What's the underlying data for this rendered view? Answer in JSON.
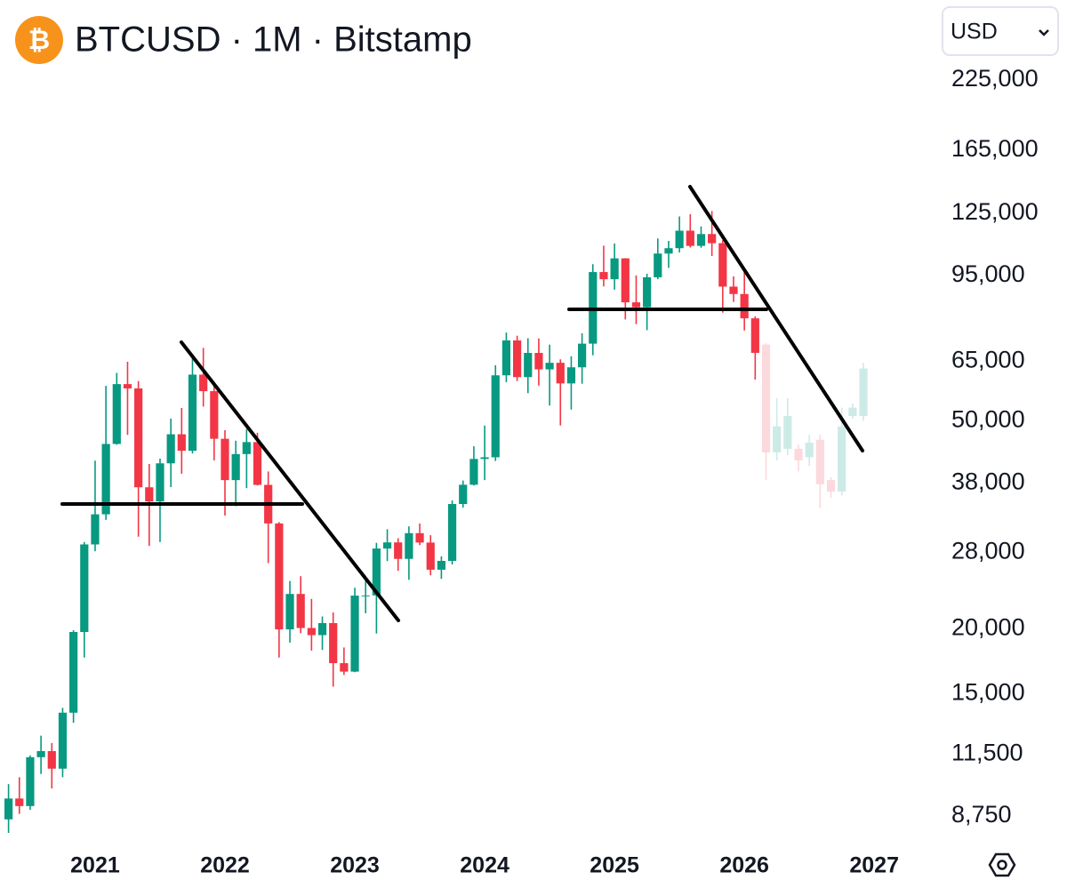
{
  "chart_data": {
    "type": "candlestick",
    "title": "BTCUSD · 1M · Bitstamp",
    "currency": "USD",
    "log_scale": true,
    "grid": false,
    "ylim": [
      7870,
      253000
    ],
    "yticks": [
      {
        "value": 225000,
        "label": "225,000"
      },
      {
        "value": 165000,
        "label": "165,000"
      },
      {
        "value": 125000,
        "label": "125,000"
      },
      {
        "value": 95000,
        "label": "95,000"
      },
      {
        "value": 65000,
        "label": "65,000"
      },
      {
        "value": 50000,
        "label": "50,000"
      },
      {
        "value": 38000,
        "label": "38,000"
      },
      {
        "value": 28000,
        "label": "28,000"
      },
      {
        "value": 20000,
        "label": "20,000"
      },
      {
        "value": 15000,
        "label": "15,000"
      },
      {
        "value": 11500,
        "label": "11,500"
      },
      {
        "value": 8750,
        "label": "8,750"
      }
    ],
    "categories": [
      null,
      null,
      null,
      null,
      null,
      null,
      null,
      null,
      "2021",
      null,
      null,
      null,
      null,
      null,
      null,
      null,
      null,
      null,
      null,
      null,
      "2022",
      null,
      null,
      null,
      null,
      null,
      null,
      null,
      null,
      null,
      null,
      null,
      "2023",
      null,
      null,
      null,
      null,
      null,
      null,
      null,
      null,
      null,
      null,
      null,
      "2024",
      null,
      null,
      null,
      null,
      null,
      null,
      null,
      null,
      null,
      null,
      null,
      "2025",
      null,
      null,
      null,
      null,
      null,
      null,
      null,
      null,
      null,
      null,
      null,
      "2026",
      null,
      null,
      null,
      null,
      null,
      null,
      null,
      null,
      null,
      null,
      null,
      "2027"
    ],
    "series": [
      {
        "up_color": "#089981",
        "down_color": "#f23645",
        "open": [
          8620,
          9450,
          9140,
          11340,
          11650,
          10780,
          13800,
          19700,
          28990,
          33110,
          45160,
          58800,
          57700,
          37300,
          35040,
          41460,
          47130,
          43820,
          61320,
          57000,
          46200,
          38500,
          43190,
          45530,
          37700,
          31800,
          19930,
          23300,
          20050,
          19430,
          20490,
          17170,
          16540,
          23130,
          23150,
          28470,
          29250,
          27200,
          30470,
          29230,
          25930,
          26960,
          34650,
          37720,
          42270,
          42580,
          61130,
          71300,
          60640,
          67480,
          62750,
          64600,
          58980,
          63330,
          70290,
          96400,
          93400,
          102400,
          84350,
          82550,
          94200,
          104600,
          107100,
          115700,
          108200,
          114000,
          109500,
          90400,
          87500,
          78600,
          null,
          null,
          null,
          null,
          null,
          null,
          null,
          null,
          null,
          null,
          null
        ],
        "high": [
          10070,
          10380,
          11430,
          12470,
          12070,
          14100,
          19860,
          29300,
          41950,
          58350,
          61780,
          64900,
          59600,
          41330,
          42320,
          50500,
          52920,
          67000,
          69000,
          59100,
          47990,
          45800,
          48200,
          47450,
          40000,
          31990,
          24670,
          25200,
          22800,
          21100,
          21480,
          18400,
          23950,
          25250,
          29200,
          31000,
          29800,
          31400,
          31800,
          30200,
          27500,
          35200,
          38430,
          44700,
          48970,
          63900,
          73800,
          72800,
          72000,
          71950,
          70000,
          65600,
          66500,
          73600,
          99800,
          108300,
          109350,
          102500,
          95000,
          95700,
          111800,
          110600,
          123200,
          124400,
          117900,
          126200,
          111000,
          94600,
          97900,
          79300,
          null,
          null,
          null,
          null,
          null,
          null,
          null,
          null,
          null,
          null,
          null
        ],
        "low": [
          8120,
          8830,
          8990,
          10530,
          9880,
          10380,
          13200,
          17600,
          28130,
          32300,
          45000,
          47000,
          30000,
          28800,
          29300,
          37330,
          39600,
          43300,
          53250,
          42000,
          32930,
          34320,
          37160,
          37600,
          26700,
          17600,
          18800,
          19600,
          18150,
          18200,
          15480,
          16300,
          16500,
          21400,
          19570,
          26940,
          25800,
          24800,
          28900,
          25300,
          24900,
          26540,
          34100,
          37600,
          38500,
          41880,
          59300,
          59600,
          56500,
          58400,
          53500,
          49000,
          52550,
          58900,
          66800,
          90500,
          89200,
          78200,
          76600,
          74600,
          93400,
          98200,
          105100,
          107400,
          107300,
          103500,
          80600,
          84500,
          74500,
          60000,
          null,
          null,
          null,
          null,
          null,
          null,
          null,
          null,
          null,
          null,
          null
        ],
        "close": [
          9450,
          9140,
          11340,
          11650,
          10780,
          13800,
          19700,
          28990,
          33110,
          45160,
          58800,
          57700,
          37300,
          35040,
          41460,
          47130,
          43820,
          61320,
          57000,
          46200,
          38500,
          43190,
          45530,
          37700,
          31800,
          19930,
          23300,
          20050,
          19430,
          20490,
          17170,
          16540,
          23130,
          23150,
          28470,
          29250,
          27200,
          30470,
          29230,
          25930,
          26960,
          34650,
          37720,
          42270,
          42580,
          61130,
          71300,
          60640,
          67480,
          62750,
          64600,
          58980,
          63330,
          70290,
          96400,
          93400,
          102400,
          84350,
          82550,
          94200,
          104600,
          107100,
          115700,
          108200,
          114000,
          109500,
          90400,
          87500,
          78600,
          67500,
          null,
          null,
          null,
          null,
          null,
          null,
          null,
          null,
          null,
          null,
          null
        ]
      },
      {
        "up_color": "#cdebe6",
        "down_color": "#fbd9dc",
        "open": [
          null,
          null,
          null,
          null,
          null,
          null,
          null,
          null,
          null,
          null,
          null,
          null,
          null,
          null,
          null,
          null,
          null,
          null,
          null,
          null,
          null,
          null,
          null,
          null,
          null,
          null,
          null,
          null,
          null,
          null,
          null,
          null,
          null,
          null,
          null,
          null,
          null,
          null,
          null,
          null,
          null,
          null,
          null,
          null,
          null,
          null,
          null,
          null,
          null,
          null,
          null,
          null,
          null,
          null,
          null,
          null,
          null,
          null,
          null,
          null,
          null,
          null,
          null,
          null,
          null,
          null,
          null,
          null,
          null,
          null,
          70000,
          43500,
          44200,
          44200,
          42600,
          46000,
          38500,
          36600,
          51100,
          51100,
          null
        ],
        "high": [
          null,
          null,
          null,
          null,
          null,
          null,
          null,
          null,
          null,
          null,
          null,
          null,
          null,
          null,
          null,
          null,
          null,
          null,
          null,
          null,
          null,
          null,
          null,
          null,
          null,
          null,
          null,
          null,
          null,
          null,
          null,
          null,
          null,
          null,
          null,
          null,
          null,
          null,
          null,
          null,
          null,
          null,
          null,
          null,
          null,
          null,
          null,
          null,
          null,
          null,
          null,
          null,
          null,
          null,
          null,
          null,
          null,
          null,
          null,
          null,
          null,
          null,
          null,
          null,
          null,
          null,
          null,
          null,
          null,
          null,
          70500,
          55300,
          55300,
          45000,
          47000,
          47000,
          39000,
          53000,
          54000,
          64600,
          null
        ],
        "low": [
          null,
          null,
          null,
          null,
          null,
          null,
          null,
          null,
          null,
          null,
          null,
          null,
          null,
          null,
          null,
          null,
          null,
          null,
          null,
          null,
          null,
          null,
          null,
          null,
          null,
          null,
          null,
          null,
          null,
          null,
          null,
          null,
          null,
          null,
          null,
          null,
          null,
          null,
          null,
          null,
          null,
          null,
          null,
          null,
          null,
          null,
          null,
          null,
          null,
          null,
          null,
          null,
          null,
          null,
          null,
          null,
          null,
          null,
          null,
          null,
          null,
          null,
          null,
          null,
          null,
          null,
          null,
          null,
          null,
          null,
          38500,
          42000,
          43000,
          40000,
          41000,
          34000,
          35600,
          36000,
          50500,
          50000,
          null
        ],
        "close": [
          null,
          null,
          null,
          null,
          null,
          null,
          null,
          null,
          null,
          null,
          null,
          null,
          null,
          null,
          null,
          null,
          null,
          null,
          null,
          null,
          null,
          null,
          null,
          null,
          null,
          null,
          null,
          null,
          null,
          null,
          null,
          null,
          null,
          null,
          null,
          null,
          null,
          null,
          null,
          null,
          null,
          null,
          null,
          null,
          null,
          null,
          null,
          null,
          null,
          null,
          null,
          null,
          null,
          null,
          null,
          null,
          null,
          null,
          null,
          null,
          null,
          null,
          null,
          null,
          null,
          null,
          null,
          null,
          null,
          null,
          43500,
          48800,
          51100,
          42000,
          45400,
          37800,
          36600,
          48800,
          53000,
          63000,
          null
        ]
      }
    ]
  }
}
